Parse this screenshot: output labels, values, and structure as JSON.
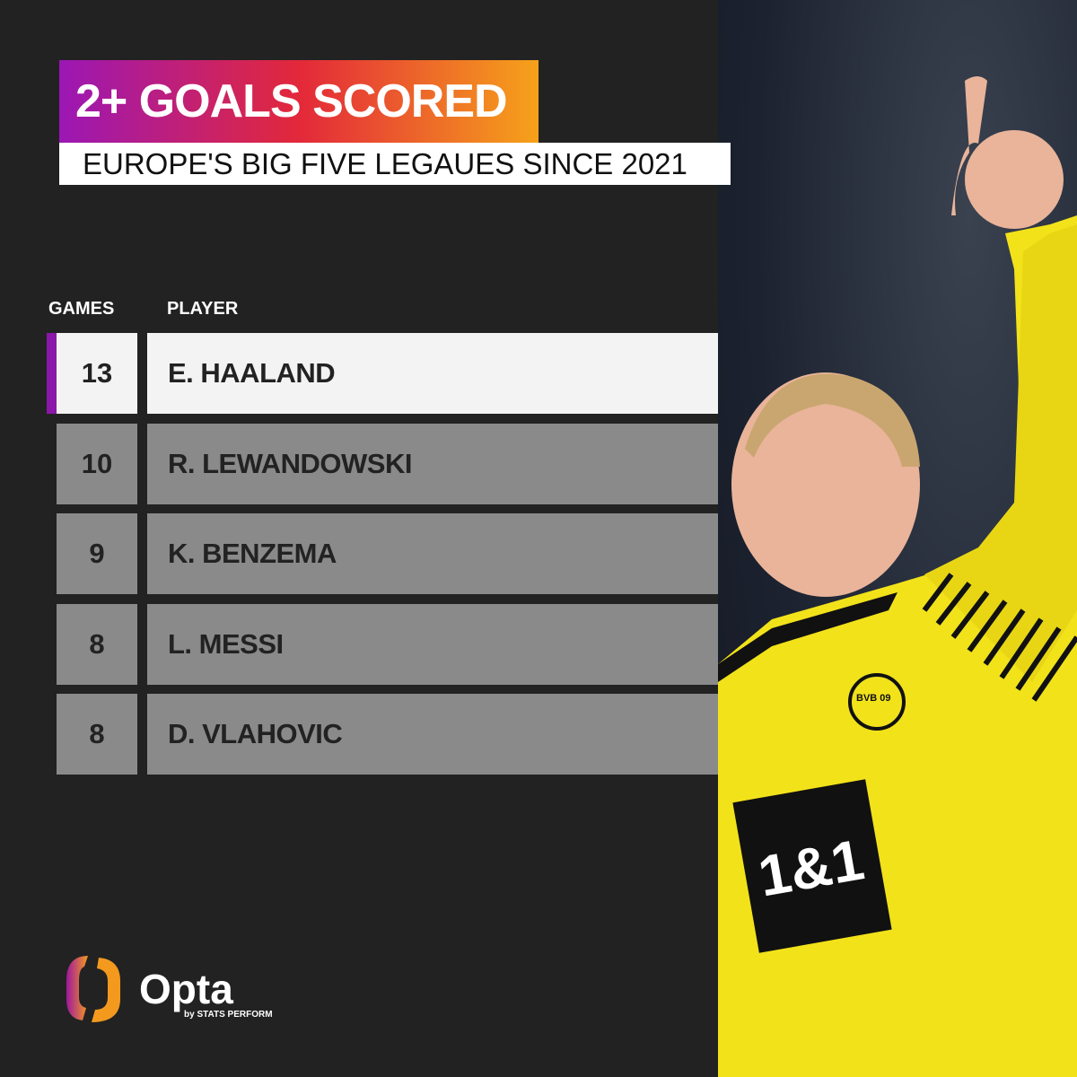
{
  "header": {
    "title": "2+ GOALS SCORED",
    "subtitle": "EUROPE'S  BIG FIVE LEGAUES SINCE 2021"
  },
  "table": {
    "columns": [
      "GAMES",
      "PLAYER"
    ],
    "rows": [
      {
        "games": "13",
        "player": "E. HAALAND",
        "highlighted": true
      },
      {
        "games": "10",
        "player": "R. LEWANDOWSKI"
      },
      {
        "games": "9",
        "player": "K. BENZEMA"
      },
      {
        "games": "8",
        "player": "L. MESSI"
      },
      {
        "games": "8",
        "player": "D. VLAHOVIC"
      }
    ]
  },
  "brand": {
    "name": "Opta",
    "tagline": "by STATS PERFORM"
  },
  "photo": {
    "shirt_sponsor": "1&1",
    "crest": "BVB 09"
  },
  "colors": {
    "accent": "#8a17a8",
    "gradient_start": "#9b17b5",
    "gradient_mid": "#e3283a",
    "gradient_end": "#f6a21a",
    "row_gray": "#8a8a8a",
    "shirt_yellow": "#f2e21a"
  }
}
